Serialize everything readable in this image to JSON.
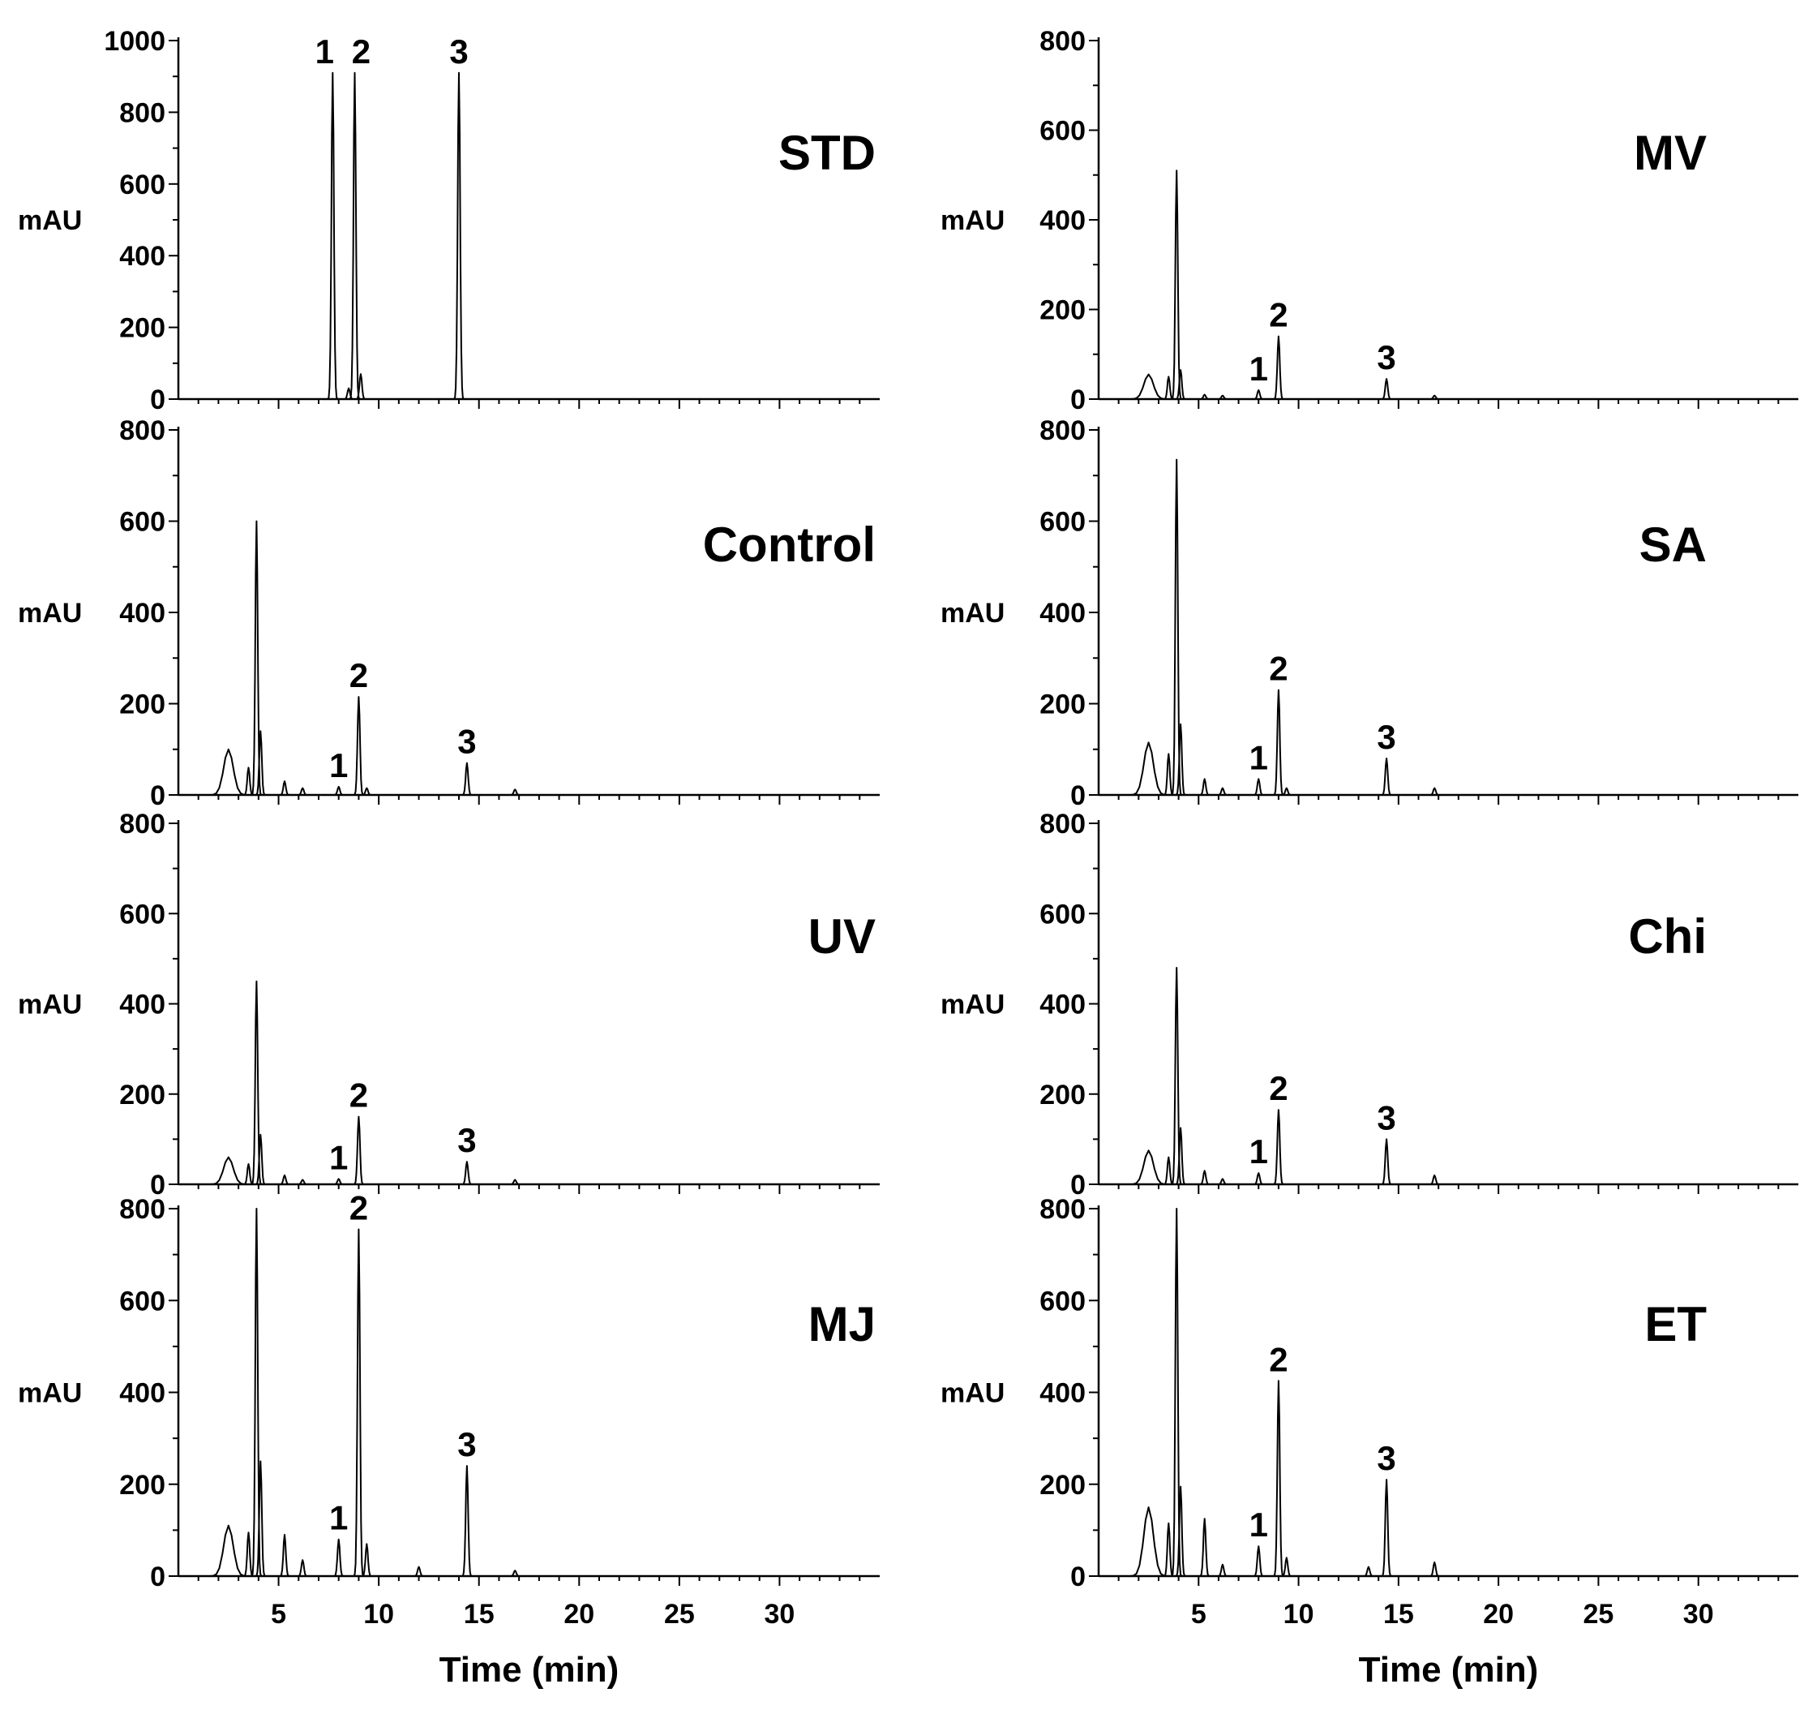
{
  "figure": {
    "x_axis_label": "Time (min)",
    "x_tick_labels": [
      "5",
      "10",
      "15",
      "20",
      "25",
      "30"
    ]
  },
  "chart_data": [
    {
      "type": "line",
      "title": "STD",
      "ylabel": "mAU",
      "xlabel": "",
      "ylim": [
        0,
        1000
      ],
      "xlim": [
        0,
        35
      ],
      "y_ticks": [
        "0",
        "200",
        "400",
        "600",
        "800",
        "1000"
      ],
      "x_ticks": [],
      "peaks": [
        {
          "label": "1",
          "x": 7.7,
          "y": 910
        },
        {
          "label": "2",
          "x": 8.8,
          "y": 910
        },
        {
          "label": "3",
          "x": 14.0,
          "y": 910
        }
      ],
      "minor_peaks": [
        {
          "x": 8.5,
          "y": 30
        },
        {
          "x": 9.1,
          "y": 70
        }
      ]
    },
    {
      "type": "line",
      "title": "MV",
      "ylabel": "mAU",
      "xlabel": "",
      "ylim": [
        0,
        800
      ],
      "xlim": [
        0,
        35
      ],
      "y_ticks": [
        "0",
        "200",
        "400",
        "600",
        "800"
      ],
      "x_ticks": [],
      "peaks": [
        {
          "label": "1",
          "x": 8.0,
          "y": 20
        },
        {
          "label": "2",
          "x": 9.0,
          "y": 140
        },
        {
          "label": "3",
          "x": 14.4,
          "y": 45
        }
      ],
      "minor_peaks": [
        {
          "x": 2.5,
          "y": 55
        },
        {
          "x": 3.5,
          "y": 50
        },
        {
          "x": 3.9,
          "y": 510
        },
        {
          "x": 4.1,
          "y": 65
        },
        {
          "x": 5.3,
          "y": 10
        },
        {
          "x": 6.2,
          "y": 8
        },
        {
          "x": 16.8,
          "y": 8
        }
      ]
    },
    {
      "type": "line",
      "title": "Control",
      "ylabel": "mAU",
      "xlabel": "",
      "ylim": [
        0,
        800
      ],
      "xlim": [
        0,
        35
      ],
      "y_ticks": [
        "0",
        "200",
        "400",
        "600",
        "800"
      ],
      "x_ticks": [],
      "peaks": [
        {
          "label": "1",
          "x": 8.0,
          "y": 18
        },
        {
          "label": "2",
          "x": 9.0,
          "y": 215
        },
        {
          "label": "3",
          "x": 14.4,
          "y": 70
        }
      ],
      "minor_peaks": [
        {
          "x": 2.5,
          "y": 100
        },
        {
          "x": 3.5,
          "y": 60
        },
        {
          "x": 3.9,
          "y": 600
        },
        {
          "x": 4.1,
          "y": 140
        },
        {
          "x": 5.3,
          "y": 30
        },
        {
          "x": 6.2,
          "y": 15
        },
        {
          "x": 9.4,
          "y": 15
        },
        {
          "x": 16.8,
          "y": 12
        }
      ]
    },
    {
      "type": "line",
      "title": "SA",
      "ylabel": "mAU",
      "xlabel": "",
      "ylim": [
        0,
        800
      ],
      "xlim": [
        0,
        35
      ],
      "y_ticks": [
        "0",
        "200",
        "400",
        "600",
        "800"
      ],
      "x_ticks": [],
      "peaks": [
        {
          "label": "1",
          "x": 8.0,
          "y": 35
        },
        {
          "label": "2",
          "x": 9.0,
          "y": 230
        },
        {
          "label": "3",
          "x": 14.4,
          "y": 80
        }
      ],
      "minor_peaks": [
        {
          "x": 2.5,
          "y": 115
        },
        {
          "x": 3.5,
          "y": 90
        },
        {
          "x": 3.9,
          "y": 735
        },
        {
          "x": 4.1,
          "y": 155
        },
        {
          "x": 5.3,
          "y": 35
        },
        {
          "x": 6.2,
          "y": 15
        },
        {
          "x": 9.4,
          "y": 15
        },
        {
          "x": 16.8,
          "y": 15
        }
      ]
    },
    {
      "type": "line",
      "title": "UV",
      "ylabel": "mAU",
      "xlabel": "",
      "ylim": [
        0,
        800
      ],
      "xlim": [
        0,
        35
      ],
      "y_ticks": [
        "0",
        "200",
        "400",
        "600",
        "800"
      ],
      "x_ticks": [],
      "peaks": [
        {
          "label": "1",
          "x": 8.0,
          "y": 12
        },
        {
          "label": "2",
          "x": 9.0,
          "y": 150
        },
        {
          "label": "3",
          "x": 14.4,
          "y": 50
        }
      ],
      "minor_peaks": [
        {
          "x": 2.5,
          "y": 60
        },
        {
          "x": 3.5,
          "y": 45
        },
        {
          "x": 3.9,
          "y": 450
        },
        {
          "x": 4.1,
          "y": 110
        },
        {
          "x": 5.3,
          "y": 20
        },
        {
          "x": 6.2,
          "y": 10
        },
        {
          "x": 16.8,
          "y": 10
        }
      ]
    },
    {
      "type": "line",
      "title": "Chi",
      "ylabel": "mAU",
      "xlabel": "",
      "ylim": [
        0,
        800
      ],
      "xlim": [
        0,
        35
      ],
      "y_ticks": [
        "0",
        "200",
        "400",
        "600",
        "800"
      ],
      "x_ticks": [],
      "peaks": [
        {
          "label": "1",
          "x": 8.0,
          "y": 25
        },
        {
          "label": "2",
          "x": 9.0,
          "y": 165
        },
        {
          "label": "3",
          "x": 14.4,
          "y": 100
        }
      ],
      "minor_peaks": [
        {
          "x": 2.5,
          "y": 75
        },
        {
          "x": 3.5,
          "y": 60
        },
        {
          "x": 3.9,
          "y": 480
        },
        {
          "x": 4.1,
          "y": 125
        },
        {
          "x": 5.3,
          "y": 30
        },
        {
          "x": 6.2,
          "y": 12
        },
        {
          "x": 16.8,
          "y": 20
        }
      ]
    },
    {
      "type": "line",
      "title": "MJ",
      "ylabel": "mAU",
      "xlabel": "Time (min)",
      "ylim": [
        0,
        800
      ],
      "xlim": [
        0,
        35
      ],
      "y_ticks": [
        "0",
        "200",
        "400",
        "600",
        "800"
      ],
      "x_ticks": [
        "5",
        "10",
        "15",
        "20",
        "25",
        "30"
      ],
      "peaks": [
        {
          "label": "1",
          "x": 8.0,
          "y": 80
        },
        {
          "label": "2",
          "x": 9.0,
          "y": 755
        },
        {
          "label": "3",
          "x": 14.4,
          "y": 240
        }
      ],
      "minor_peaks": [
        {
          "x": 2.5,
          "y": 110
        },
        {
          "x": 3.5,
          "y": 95
        },
        {
          "x": 3.9,
          "y": 800
        },
        {
          "x": 4.1,
          "y": 250
        },
        {
          "x": 5.3,
          "y": 90
        },
        {
          "x": 6.2,
          "y": 35
        },
        {
          "x": 9.4,
          "y": 70
        },
        {
          "x": 12.0,
          "y": 20
        },
        {
          "x": 16.8,
          "y": 12
        }
      ]
    },
    {
      "type": "line",
      "title": "ET",
      "ylabel": "mAU",
      "xlabel": "Time (min)",
      "ylim": [
        0,
        800
      ],
      "xlim": [
        0,
        35
      ],
      "y_ticks": [
        "0",
        "200",
        "400",
        "600",
        "800"
      ],
      "x_ticks": [
        "5",
        "10",
        "15",
        "20",
        "25",
        "30"
      ],
      "peaks": [
        {
          "label": "1",
          "x": 8.0,
          "y": 65
        },
        {
          "label": "2",
          "x": 9.0,
          "y": 425
        },
        {
          "label": "3",
          "x": 14.4,
          "y": 210
        }
      ],
      "minor_peaks": [
        {
          "x": 2.5,
          "y": 150
        },
        {
          "x": 3.5,
          "y": 115
        },
        {
          "x": 3.9,
          "y": 800
        },
        {
          "x": 4.1,
          "y": 195
        },
        {
          "x": 5.3,
          "y": 125
        },
        {
          "x": 6.2,
          "y": 25
        },
        {
          "x": 9.4,
          "y": 40
        },
        {
          "x": 13.5,
          "y": 20
        },
        {
          "x": 16.8,
          "y": 30
        }
      ]
    }
  ]
}
